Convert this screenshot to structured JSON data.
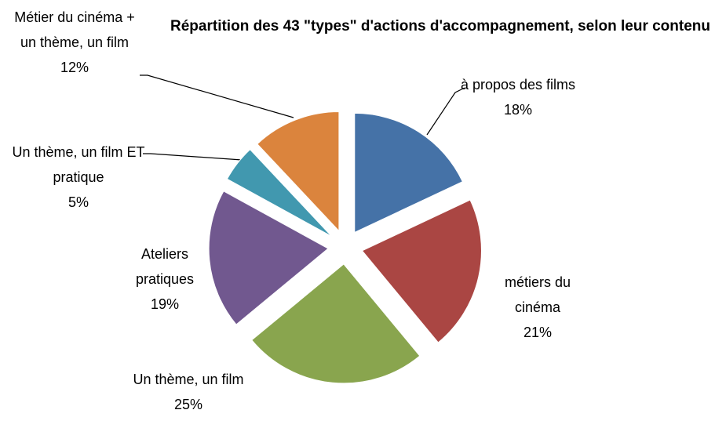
{
  "chart_data": {
    "type": "pie",
    "title": "Répartition des 43 \"types\" d'actions d'accompagnement, selon leur contenu",
    "categories": [
      "à propos des films",
      "métiers du cinéma",
      "Un thème, un film",
      "Ateliers pratiques",
      "Un thème, un film ET pratique",
      "Métier du cinéma + un thème, un film"
    ],
    "values": [
      18,
      21,
      25,
      19,
      5,
      12
    ],
    "value_labels": [
      "18%",
      "21%",
      "25%",
      "19%",
      "5%",
      "12%"
    ],
    "colors": [
      "#4572a7",
      "#aa4643",
      "#89a54e",
      "#71588f",
      "#4198af",
      "#db843d"
    ]
  }
}
